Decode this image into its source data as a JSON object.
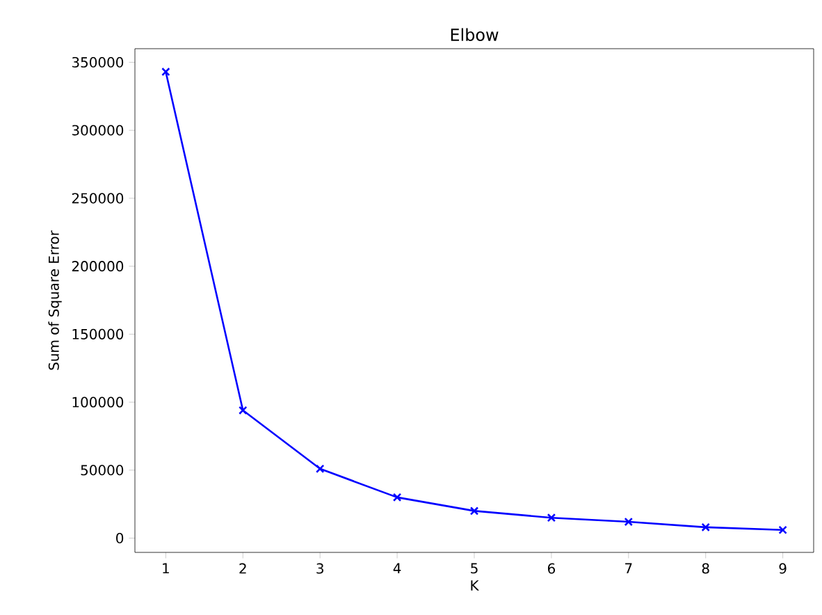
{
  "chart_data": {
    "type": "line",
    "title": "Elbow",
    "xlabel": "K",
    "ylabel": "Sum of Square Error",
    "x": [
      1,
      2,
      3,
      4,
      5,
      6,
      7,
      8,
      9
    ],
    "values": [
      343000,
      94000,
      51000,
      30000,
      20000,
      15000,
      12000,
      8000,
      6000
    ],
    "color": "#0000ff",
    "marker": "cross",
    "line_style": "solid",
    "grid": false,
    "xlim": [
      0.6,
      9.4
    ],
    "xticks": [
      1,
      2,
      3,
      4,
      5,
      6,
      7,
      8,
      9
    ],
    "ylim": [
      -10500,
      360000
    ],
    "yticks": [
      0,
      50000,
      100000,
      150000,
      200000,
      250000,
      300000,
      350000
    ]
  }
}
